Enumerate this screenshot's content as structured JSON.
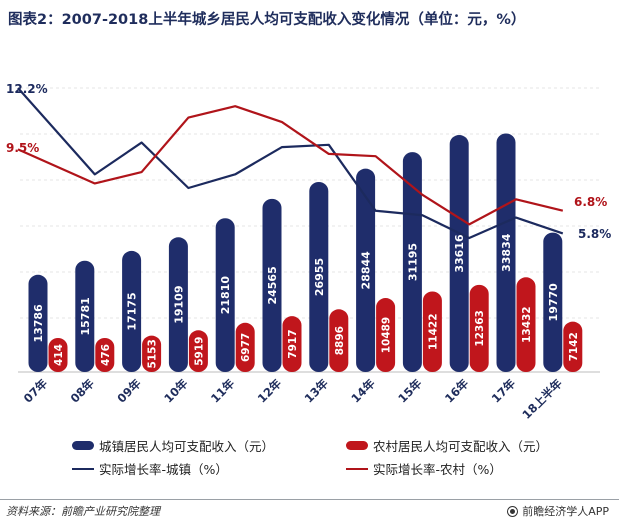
{
  "title": "图表2：2007-2018上半年城乡居民人均可支配收入变化情况（单位：元，%）",
  "footer": {
    "source": "资料来源：前瞻产业研究院整理",
    "brand": "前瞻经济学人APP"
  },
  "colors": {
    "urban_bar": "#1f2d6b",
    "rural_bar": "#c0161c",
    "urban_line": "#1c2a5e",
    "rural_line": "#b0141a"
  },
  "chart_data": {
    "type": "bar",
    "categories": [
      "07年",
      "08年",
      "09年",
      "10年",
      "11年",
      "12年",
      "13年",
      "14年",
      "15年",
      "16年",
      "17年",
      "18上半年"
    ],
    "series": [
      {
        "name": "城镇居民人均可支配收入（元）",
        "type": "bar",
        "values": [
          13786,
          15781,
          17175,
          19109,
          21810,
          24565,
          26955,
          28844,
          31195,
          33616,
          33834,
          19770
        ]
      },
      {
        "name": "农村居民人均可支配收入（元）",
        "type": "bar",
        "values": [
          414,
          476,
          5153,
          5919,
          6977,
          7917,
          8896,
          10489,
          11422,
          12363,
          13432,
          7142
        ]
      },
      {
        "name": "实际增长率-城镇（%）",
        "type": "line",
        "values": [
          12.2,
          8.4,
          9.8,
          7.8,
          8.4,
          9.6,
          9.7,
          6.8,
          6.6,
          5.6,
          6.5,
          5.8
        ]
      },
      {
        "name": "实际增长率-农村（%）",
        "type": "line",
        "values": [
          9.5,
          8.0,
          8.5,
          10.9,
          11.4,
          10.7,
          9.3,
          9.2,
          7.5,
          6.2,
          7.3,
          6.8
        ]
      }
    ],
    "point_labels": {
      "urban_first": "12.2%",
      "rural_first": "9.5%",
      "urban_last": "5.8%",
      "rural_last": "6.8%"
    },
    "bar_ylim": [
      0,
      40000
    ],
    "line_ylim": [
      4,
      13
    ],
    "legend": [
      {
        "label": "城镇居民人均可支配收入（元）",
        "kind": "bar",
        "color": "#1f2d6b"
      },
      {
        "label": "农村居民人均可支配收入（元）",
        "kind": "bar",
        "color": "#c0161c"
      },
      {
        "label": "实际增长率-城镇（%）",
        "kind": "line",
        "color": "#1c2a5e"
      },
      {
        "label": "实际增长率-农村（%）",
        "kind": "line",
        "color": "#b0141a"
      }
    ],
    "legend_position": "bottom",
    "grid": true
  }
}
